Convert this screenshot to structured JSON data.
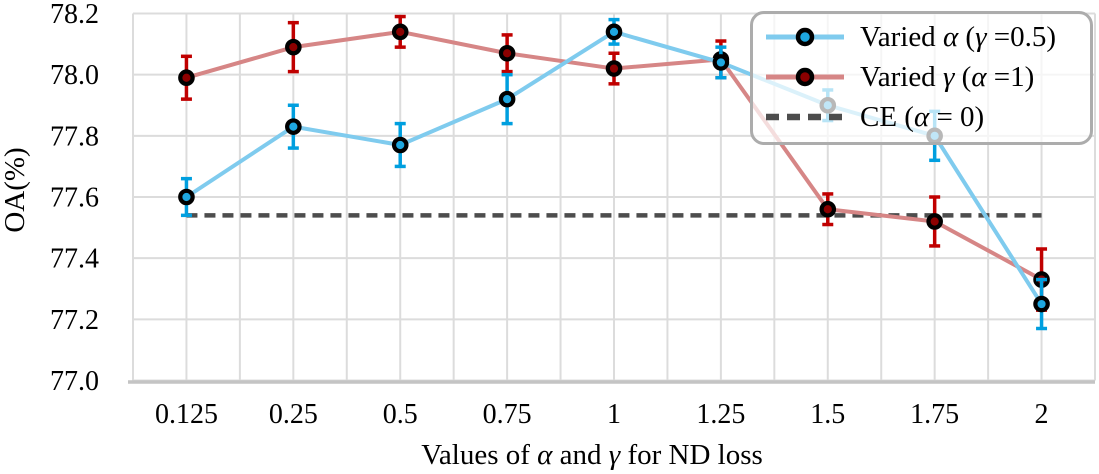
{
  "chart_data": {
    "type": "line",
    "title": "",
    "xlabel": "Values of α and γ for ND loss",
    "ylabel": "OA(%)",
    "x_categories": [
      "0.125",
      "0.25",
      "0.5",
      "0.75",
      "1",
      "1.25",
      "1.5",
      "1.75",
      "2"
    ],
    "y_ticks": [
      "78.2",
      "78.0",
      "77.8",
      "77.6",
      "77.4",
      "77.2",
      "77.0"
    ],
    "ylim": [
      77.0,
      78.2
    ],
    "grid": true,
    "legend_position": "upper-right",
    "series": [
      {
        "name": "Varied α (γ =0.5)",
        "line_color": "#7fcbee",
        "error_color": "#009fdf",
        "marker_fill": "#1ea7e0",
        "values": [
          77.6,
          77.83,
          77.77,
          77.92,
          78.14,
          78.04,
          77.9,
          77.8,
          77.25
        ],
        "errors": [
          0.06,
          0.07,
          0.07,
          0.08,
          0.04,
          0.05,
          0.05,
          0.08,
          0.08
        ]
      },
      {
        "name": "Varied γ (α =1)",
        "line_color": "#d68686",
        "error_color": "#c00000",
        "marker_fill": "#8c0000",
        "values": [
          77.99,
          78.09,
          78.14,
          78.07,
          78.02,
          78.05,
          77.56,
          77.52,
          77.33
        ],
        "errors": [
          0.07,
          0.08,
          0.05,
          0.06,
          0.05,
          0.06,
          0.05,
          0.08,
          0.1
        ]
      }
    ],
    "baseline": {
      "name": "CE (α = 0)",
      "value": 77.54,
      "color": "#4d4d4d",
      "style": "dashed"
    }
  },
  "legend": {
    "items": [
      {
        "label": "Varied α (γ =0.5)",
        "swatch": "line-marker",
        "line_color": "#7fcbee",
        "marker_fill": "#1ea7e0"
      },
      {
        "label": "Varied γ (α =1)",
        "swatch": "line-marker",
        "line_color": "#d68686",
        "marker_fill": "#8c0000"
      },
      {
        "label": "CE (α = 0)",
        "swatch": "dashed",
        "line_color": "#4d4d4d"
      }
    ]
  },
  "colors": {
    "gridline": "#dcdcdc",
    "axis_spine": "#c4c4c4",
    "legend_border": "#acacac"
  }
}
